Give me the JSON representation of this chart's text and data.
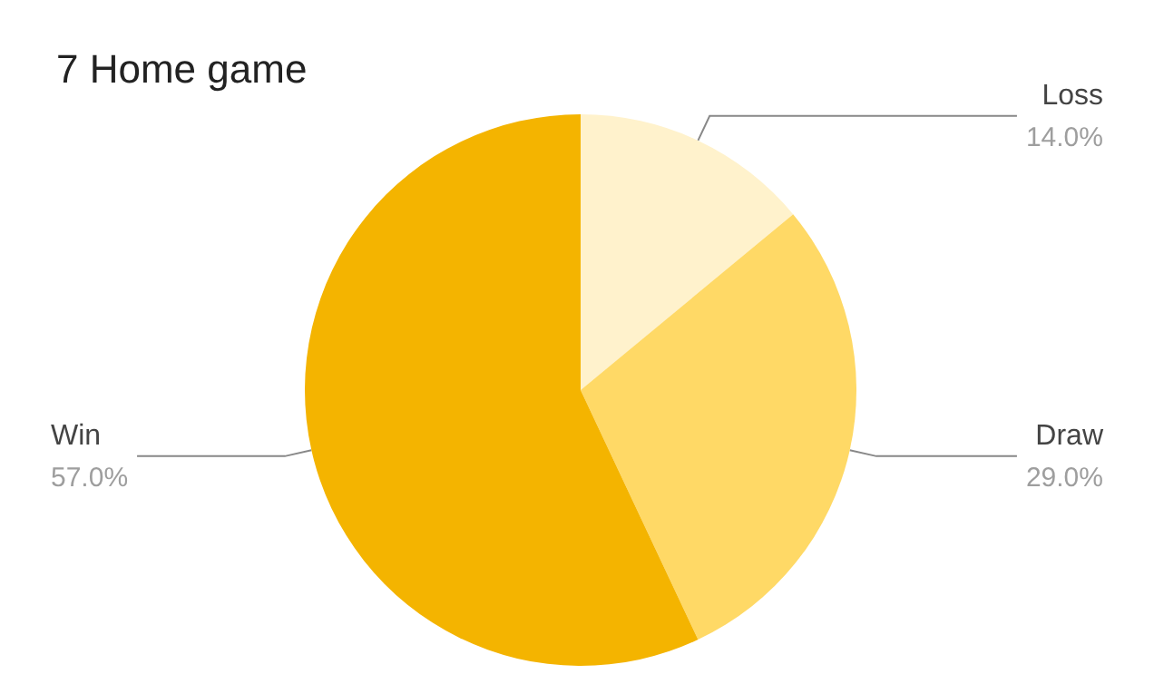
{
  "chart_data": {
    "type": "pie",
    "title": "7 Home game",
    "categories": [
      "Loss",
      "Draw",
      "Win"
    ],
    "values": [
      14,
      29,
      57
    ],
    "colors": [
      "#fff2cc",
      "#ffd966",
      "#f4b400"
    ],
    "value_labels": [
      "14.0%",
      "29.0%",
      "57.0%"
    ],
    "legend": false
  }
}
